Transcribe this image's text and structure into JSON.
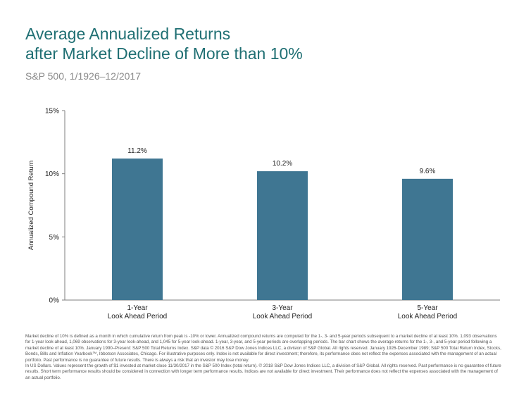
{
  "header": {
    "title": "Average Annualized Returns\nafter Market Decline of More than 10%",
    "subtitle": "S&P 500, 1/1926–12/2017"
  },
  "chart_data": {
    "type": "bar",
    "ylabel": "Annualized Compound Return",
    "ylim": [
      0,
      15
    ],
    "yticks": [
      0,
      5,
      10,
      15
    ],
    "ytick_labels": [
      "0%",
      "5%",
      "10%",
      "15%"
    ],
    "categories": [
      [
        "1-Year",
        "Look Ahead Period"
      ],
      [
        "3-Year",
        "Look Ahead Period"
      ],
      [
        "5-Year",
        "Look Ahead Period"
      ]
    ],
    "values": [
      11.2,
      10.2,
      9.6
    ],
    "value_labels": [
      "11.2%",
      "10.2%",
      "9.6%"
    ],
    "bar_color": "#3f7692",
    "grid": false,
    "legend": "none"
  },
  "footnotes": [
    "Market decline of 10% is defined as a month in which cumulative return from peak is -10% or lower. Annualized compound returns are computed for the 1-, 3- and 5-year periods subsequent to a market decline of at least 10%. 1,093 observations for 1-year look-ahead, 1,069 observations for 3-year look-ahead, and 1,045 for 5-year look-ahead. 1-year, 3-year, and 5-year periods are overlapping periods. The bar chart shows the average returns for the 1-, 3-, and 5-year period following a market decline of at least 10%. January 1990–Present: S&P 500 Total Returns Index. S&P data © 2016 S&P Dow Jones Indices LLC, a division of S&P Global. All rights reserved. January 1926-December 1989; S&P 500 Total Return Index, Stocks, Bonds, Bills and Inflation Yearbook™, Ibbotson Associates, Chicago. For illustrative purposes only. Index is not available for direct investment; therefore, its performance does not reflect the expenses associated with the management of an actual portfolio. Past performance is no guarantee of future results. There is always a risk that an investor may lose money.",
    "In US Dollars. Values represent the growth of $1 invested at market close 11/30/2017 in the S&P 500 Index (total return). © 2018 S&P Dow Jones Indices LLC, a division of S&P Global. All rights reserved. Past performance is no guarantee of future results. Short term performance results should be considered in connection with longer term performance results. Indices are not available for direct investment. Their performance does not reflect the expenses associated with the management of an actual portfolio."
  ]
}
